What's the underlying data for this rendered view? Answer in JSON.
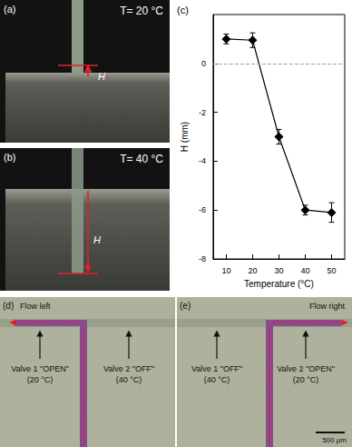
{
  "chart_data": {
    "type": "line",
    "panel_label": "(c)",
    "x": [
      10,
      20,
      30,
      40,
      50
    ],
    "values": [
      1.0,
      0.95,
      -3.0,
      -6.0,
      -6.1
    ],
    "errors": [
      0.2,
      0.3,
      0.3,
      0.2,
      0.4
    ],
    "color": "#000000",
    "marker": "diamond",
    "line_style": "solid",
    "x_label": "Temperature (°C)",
    "y_label": "H (mm)",
    "xlim": [
      5,
      55
    ],
    "xticks": [
      10,
      20,
      30,
      40,
      50
    ],
    "ylim": [
      -8,
      2
    ],
    "yticks": [
      -8,
      -6,
      -4,
      -2,
      0
    ],
    "grid": false,
    "reference_lines": [
      {
        "y": 0,
        "line_style": "dashed",
        "color": "#9a9ad0"
      }
    ]
  },
  "panels": {
    "a": {
      "label": "(a)",
      "temperature": "T= 20 °C",
      "height_label": "H"
    },
    "b": {
      "label": "(b)",
      "temperature": "T= 40 °C",
      "height_label": "H"
    },
    "d": {
      "label": "(d)",
      "flow": "Flow left",
      "valve1": "Valve 1 \"OPEN\"",
      "valve1_temp": "(20 °C)",
      "valve2": "Valve 2 \"OFF\"",
      "valve2_temp": "(40 °C)"
    },
    "e": {
      "label": "(e)",
      "flow": "Flow right",
      "valve1": "Valve 1 \"OFF\"",
      "valve1_temp": "(40 °C)",
      "valve2": "Valve 2 \"OPEN\"",
      "valve2_temp": "(20 °C)",
      "scale_bar": "500 µm"
    }
  }
}
